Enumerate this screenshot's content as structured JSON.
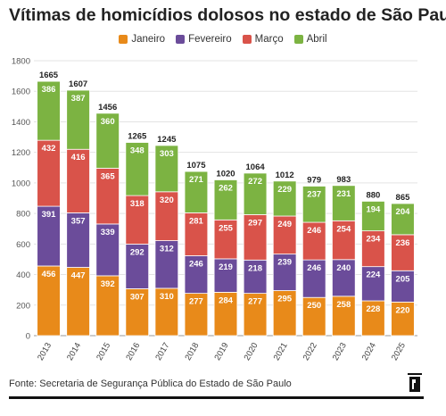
{
  "title": "Vítimas de homicídios dolosos no estado de São Paulo",
  "source": "Fonte: Secretaria de Segurança Pública do Estado de São Paulo",
  "chart_data": {
    "type": "bar",
    "stacked": true,
    "categories": [
      "2013",
      "2014",
      "2015",
      "2016",
      "2017",
      "2018",
      "2019",
      "2020",
      "2021",
      "2022",
      "2023",
      "2024",
      "2025"
    ],
    "series": [
      {
        "name": "Janeiro",
        "color": "#e88a1a",
        "values": [
          456,
          447,
          392,
          307,
          310,
          277,
          284,
          277,
          295,
          250,
          258,
          228,
          220
        ]
      },
      {
        "name": "Fevereiro",
        "color": "#6b4c9a",
        "values": [
          391,
          357,
          339,
          292,
          312,
          246,
          219,
          218,
          239,
          246,
          240,
          224,
          205
        ]
      },
      {
        "name": "Março",
        "color": "#d9534a",
        "values": [
          432,
          416,
          365,
          318,
          320,
          281,
          255,
          297,
          249,
          246,
          254,
          234,
          236
        ]
      },
      {
        "name": "Abril",
        "color": "#7cb342",
        "values": [
          386,
          387,
          360,
          348,
          303,
          271,
          262,
          272,
          229,
          237,
          231,
          194,
          204
        ]
      }
    ],
    "totals": [
      1665,
      1607,
      1456,
      1265,
      1245,
      1075,
      1020,
      1064,
      1012,
      979,
      983,
      880,
      865
    ],
    "yticks": [
      "0",
      "200",
      "400",
      "600",
      "800",
      "1000",
      "1200",
      "1400",
      "1600",
      "1800"
    ],
    "ylim": [
      0,
      1800
    ],
    "grid": true,
    "legend_position": "top-center"
  }
}
